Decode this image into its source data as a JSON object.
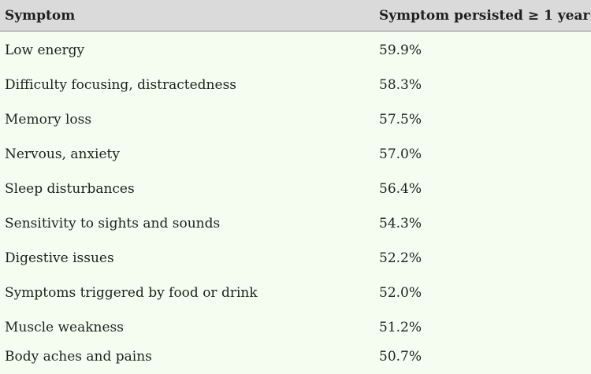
{
  "table": {
    "headers": {
      "symptom": "Symptom",
      "persisted": "Symptom persisted ≥ 1 year"
    },
    "rows": [
      {
        "symptom": "Low energy",
        "value": "59.9%"
      },
      {
        "symptom": "Difficulty focusing, distractedness",
        "value": "58.3%"
      },
      {
        "symptom": "Memory loss",
        "value": "57.5%"
      },
      {
        "symptom": "Nervous, anxiety",
        "value": "57.0%"
      },
      {
        "symptom": "Sleep disturbances",
        "value": "56.4%"
      },
      {
        "symptom": "Sensitivity to sights and sounds",
        "value": "54.3%"
      },
      {
        "symptom": "Digestive issues",
        "value": "52.2%"
      },
      {
        "symptom": "Symptoms triggered by food or drink",
        "value": "52.0%"
      },
      {
        "symptom": "Muscle weakness",
        "value": "51.2%"
      },
      {
        "symptom": "Body aches and pains",
        "value": "50.7%"
      }
    ]
  },
  "colors": {
    "header_bg": "#dadada",
    "body_bg": "#f5fdf0",
    "text": "#1f1f1f"
  }
}
